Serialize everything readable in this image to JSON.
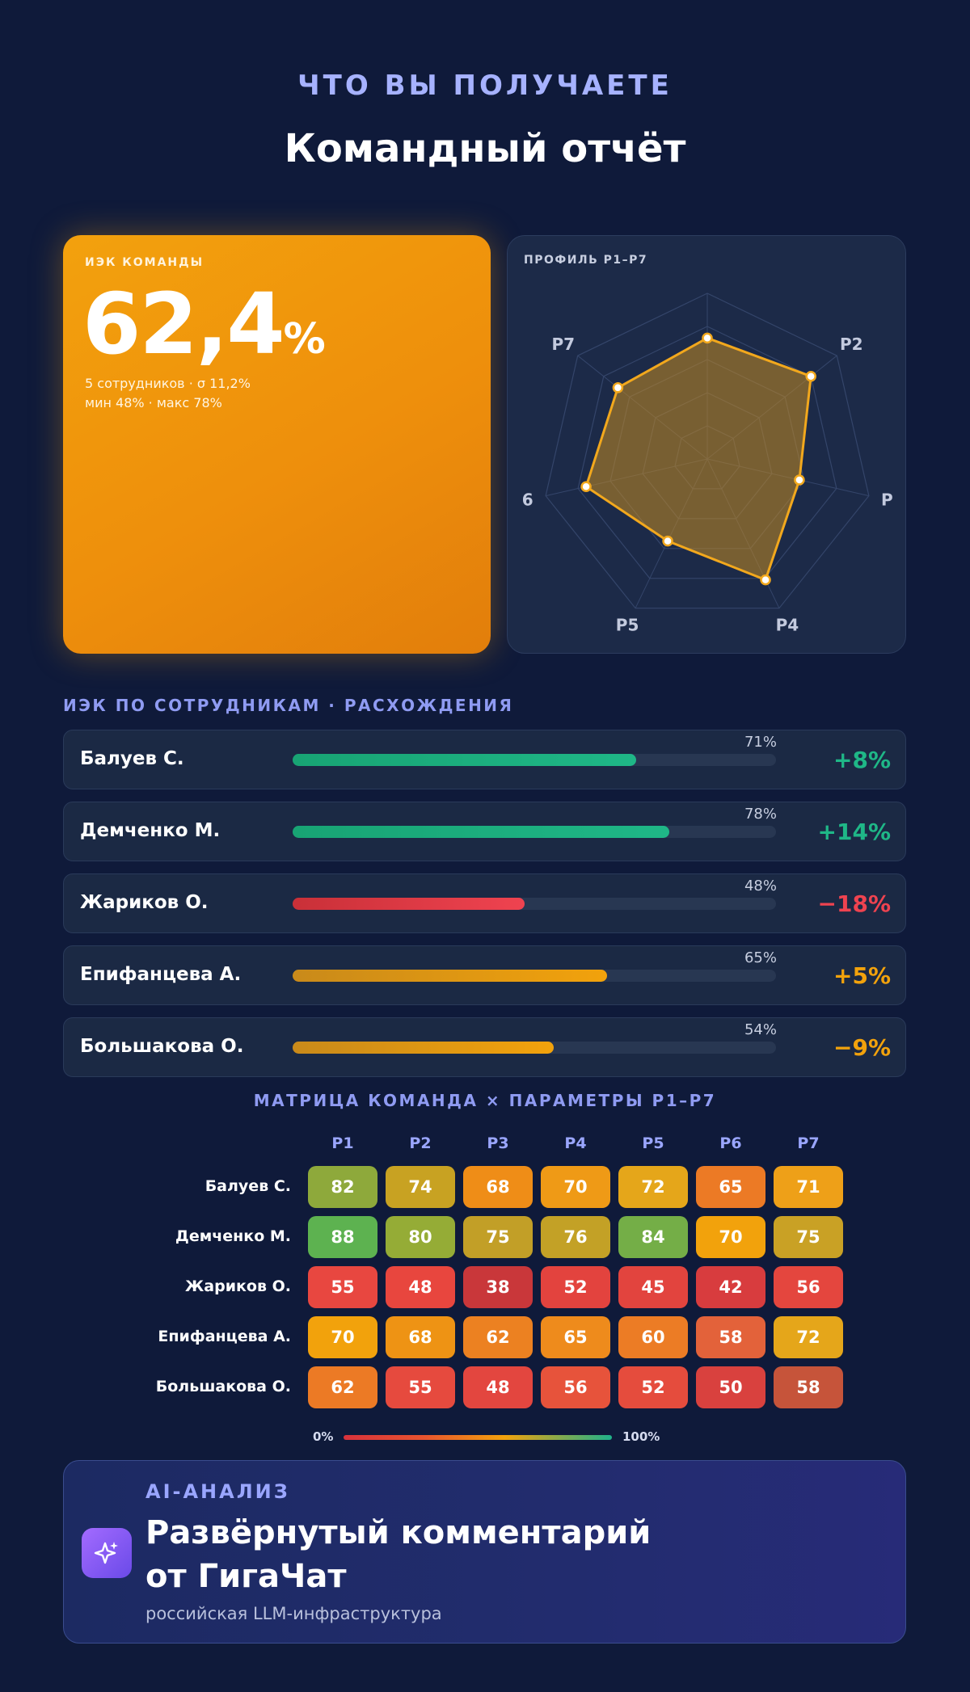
{
  "header": {
    "eyebrow": "ЧТО ВЫ ПОЛУЧАЕТЕ",
    "title": "Командный отчёт"
  },
  "kpi": {
    "label": "ИЭК КОМАНДЫ",
    "value": "62,4",
    "unit": "%",
    "sub_line1": "5 сотрудников · σ 11,2%",
    "sub_line2": "мин 48% · макс 78%",
    "accent_color": "#f3a10d"
  },
  "radar": {
    "label": "ПРОФИЛЬ P1–P7",
    "axis_labels": [
      "",
      "P2",
      "P",
      "P4",
      "P5",
      "6",
      "P7"
    ],
    "levels": 5,
    "max": 100,
    "values": [
      73,
      80,
      57,
      81,
      55,
      75,
      69
    ],
    "stroke_color": "#f2a81d"
  },
  "employees_section": {
    "title": "ИЭК ПО СОТРУДНИКАМ · РАСХОЖДЕНИЯ",
    "rows": [
      {
        "name": "Балуев С.",
        "value": 71,
        "pct_label": "71%",
        "deviation": "+8%",
        "status": "good"
      },
      {
        "name": "Демченко М.",
        "value": 78,
        "pct_label": "78%",
        "deviation": "+14%",
        "status": "good"
      },
      {
        "name": "Жариков О.",
        "value": 48,
        "pct_label": "48%",
        "deviation": "−18%",
        "status": "bad"
      },
      {
        "name": "Епифанцева А.",
        "value": 65,
        "pct_label": "65%",
        "deviation": "+5%",
        "status": "mid"
      },
      {
        "name": "Большакова О.",
        "value": 54,
        "pct_label": "54%",
        "deviation": "−9%",
        "status": "mid"
      }
    ],
    "colors": {
      "good": "#1fb787",
      "bad": "#ef4350",
      "mid": "#f2a20c"
    }
  },
  "matrix": {
    "title": "МАТРИЦА КОМАНДА × ПАРАМЕТРЫ P1–P7",
    "columns": [
      "P1",
      "P2",
      "P3",
      "P4",
      "P5",
      "P6",
      "P7"
    ],
    "rows": [
      {
        "name": "Балуев С.",
        "values": [
          82,
          74,
          68,
          70,
          72,
          65,
          71
        ]
      },
      {
        "name": "Демченко М.",
        "values": [
          88,
          80,
          75,
          76,
          84,
          70,
          75
        ]
      },
      {
        "name": "Жариков О.",
        "values": [
          55,
          48,
          38,
          52,
          45,
          42,
          56
        ]
      },
      {
        "name": "Епифанцева А.",
        "values": [
          70,
          68,
          62,
          65,
          60,
          58,
          72
        ]
      },
      {
        "name": "Большакова О.",
        "values": [
          62,
          55,
          48,
          56,
          52,
          50,
          58
        ]
      }
    ],
    "cell_colors": [
      [
        "#8ea93b",
        "#c8a222",
        "#ef8d17",
        "#ef9a16",
        "#e5a61a",
        "#ec7a25",
        "#eea018"
      ],
      [
        "#5db250",
        "#95ac36",
        "#c29f27",
        "#c3a126",
        "#74ae47",
        "#f2a20c",
        "#c9a125"
      ],
      [
        "#e84740",
        "#e8463e",
        "#c9373a",
        "#e3433e",
        "#e2443e",
        "#d83c3e",
        "#e4463e"
      ],
      [
        "#f2a20c",
        "#ee9314",
        "#ec8121",
        "#ee8b1c",
        "#ec7c25",
        "#e3623a",
        "#e5a61a"
      ],
      [
        "#ec7a25",
        "#e64a3e",
        "#e3463f",
        "#e7533b",
        "#e54c3d",
        "#d9413e",
        "#c6543a"
      ]
    ],
    "legend_min": "0%",
    "legend_max": "100%"
  },
  "ai": {
    "eyebrow": "AI-АНАЛИЗ",
    "title_line1": "Развёрнутый комментарий",
    "title_line2": "от ГигаЧат",
    "subtitle": "российская LLM-инфраструктура",
    "icon": "sparkle-icon"
  }
}
